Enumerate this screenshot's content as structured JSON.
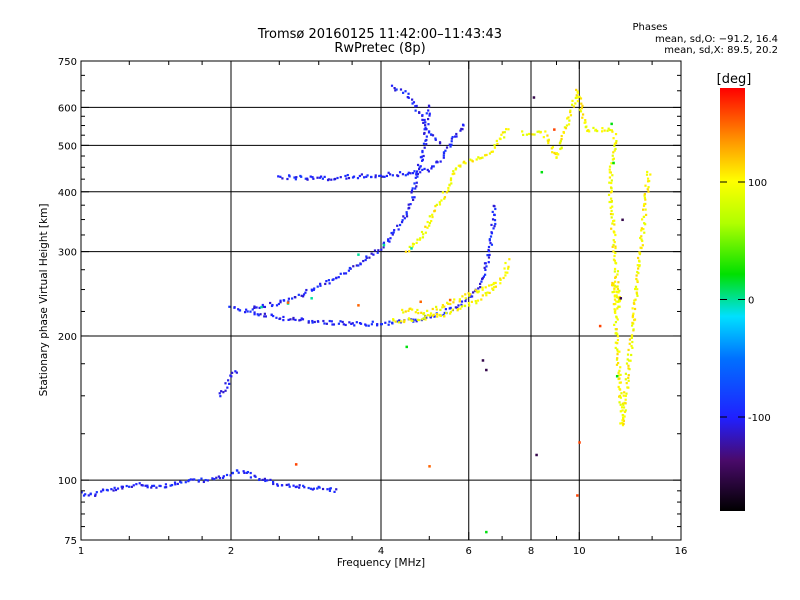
{
  "chart_data": {
    "type": "scatter",
    "title": "Tromsø 20160125 11:42:00–11:43:43",
    "subtitle": "RwPretec (8p)",
    "xlabel": "Frequency [MHz]",
    "ylabel": "Stationary phase Virtual Height [km]",
    "x_scale": "log",
    "y_scale": "log",
    "xlim": [
      1,
      16
    ],
    "ylim": [
      75,
      750
    ],
    "x_ticks": [
      1,
      2,
      4,
      6,
      8,
      10,
      16
    ],
    "y_ticks": [
      75,
      100,
      200,
      300,
      400,
      500,
      600,
      750
    ],
    "x_gridlines": [
      2,
      4,
      6,
      8,
      10
    ],
    "y_gridlines": [
      100,
      200,
      300,
      400,
      500,
      600
    ],
    "grid": true,
    "phase_stats": {
      "title": "Phases",
      "line_o": "mean, sd,O: −91.2, 16.4",
      "line_x": "mean, sd,X:  89.5, 20.2"
    },
    "colorbar": {
      "title": "[deg]",
      "min": -180,
      "max": 180,
      "ticks": [
        100,
        0,
        -100
      ],
      "tick_labels": [
        "100",
        "0",
        "-100"
      ]
    },
    "series_traces": [
      {
        "phase": -100,
        "points": [
          [
            1.0,
            94
          ],
          [
            1.05,
            93
          ],
          [
            1.1,
            95
          ],
          [
            1.2,
            96
          ],
          [
            1.3,
            98
          ],
          [
            1.45,
            97
          ],
          [
            1.6,
            99
          ],
          [
            1.75,
            100
          ],
          [
            1.9,
            101
          ],
          [
            2.0,
            103
          ],
          [
            2.1,
            105
          ],
          [
            2.2,
            102
          ],
          [
            2.35,
            100
          ],
          [
            2.5,
            98
          ],
          [
            2.7,
            97
          ],
          [
            3.0,
            96
          ],
          [
            3.3,
            95
          ]
        ]
      },
      {
        "phase": -100,
        "points": [
          [
            1.9,
            150
          ],
          [
            1.95,
            155
          ],
          [
            2.0,
            165
          ],
          [
            2.05,
            170
          ]
        ]
      },
      {
        "phase": -100,
        "points": [
          [
            2.0,
            229
          ],
          [
            2.3,
            222
          ],
          [
            2.7,
            216
          ],
          [
            3.2,
            213
          ],
          [
            3.7,
            212
          ],
          [
            4.2,
            213
          ],
          [
            4.7,
            216
          ],
          [
            5.2,
            221
          ],
          [
            5.7,
            230
          ],
          [
            6.0,
            240
          ],
          [
            6.3,
            255
          ],
          [
            6.5,
            275
          ],
          [
            6.6,
            300
          ],
          [
            6.7,
            330
          ],
          [
            6.75,
            360
          ],
          [
            6.8,
            380
          ]
        ]
      },
      {
        "phase": -100,
        "points": [
          [
            2.2,
            228
          ],
          [
            2.5,
            235
          ],
          [
            2.8,
            245
          ],
          [
            3.1,
            258
          ],
          [
            3.4,
            272
          ],
          [
            3.7,
            288
          ],
          [
            4.0,
            305
          ],
          [
            4.2,
            325
          ],
          [
            4.4,
            345
          ],
          [
            4.6,
            380
          ],
          [
            4.7,
            420
          ],
          [
            4.8,
            460
          ],
          [
            4.9,
            510
          ],
          [
            4.95,
            560
          ],
          [
            5.0,
            610
          ]
        ]
      },
      {
        "phase": -100,
        "points": [
          [
            2.5,
            430
          ],
          [
            2.8,
            428
          ],
          [
            3.1,
            427
          ],
          [
            3.5,
            430
          ],
          [
            4.0,
            433
          ],
          [
            4.5,
            437
          ],
          [
            5.0,
            445
          ],
          [
            5.3,
            470
          ],
          [
            5.5,
            500
          ],
          [
            5.7,
            530
          ],
          [
            5.9,
            560
          ]
        ]
      },
      {
        "phase": -100,
        "points": [
          [
            4.2,
            660
          ],
          [
            4.5,
            640
          ],
          [
            4.7,
            600
          ],
          [
            4.9,
            560
          ],
          [
            5.1,
            520
          ],
          [
            5.3,
            500
          ]
        ]
      },
      {
        "phase": 100,
        "points": [
          [
            4.2,
            215
          ],
          [
            4.8,
            217
          ],
          [
            5.4,
            222
          ],
          [
            6.0,
            232
          ],
          [
            6.5,
            245
          ],
          [
            6.9,
            258
          ],
          [
            7.1,
            270
          ],
          [
            7.2,
            290
          ]
        ]
      },
      {
        "phase": 100,
        "points": [
          [
            4.5,
            300
          ],
          [
            4.8,
            320
          ],
          [
            5.1,
            360
          ],
          [
            5.4,
            400
          ],
          [
            5.6,
            440
          ],
          [
            5.9,
            460
          ],
          [
            6.3,
            470
          ],
          [
            6.7,
            490
          ],
          [
            7.0,
            520
          ],
          [
            7.2,
            550
          ]
        ]
      },
      {
        "phase": 100,
        "points": [
          [
            4.4,
            225
          ],
          [
            4.6,
            228
          ],
          [
            4.9,
            222
          ],
          [
            5.6,
            236
          ],
          [
            6.2,
            248
          ],
          [
            6.8,
            258
          ]
        ]
      },
      {
        "phase": 0,
        "points": [
          [
            2.3,
            230
          ],
          [
            2.6,
            234
          ],
          [
            2.9,
            240
          ],
          [
            3.6,
            296
          ],
          [
            4.05,
            310
          ],
          [
            4.6,
            305
          ]
        ]
      },
      {
        "phase": 150,
        "points": [
          [
            2.6,
            235
          ],
          [
            3.6,
            232
          ],
          [
            4.8,
            236
          ],
          [
            5.5,
            238
          ],
          [
            5.0,
            107
          ]
        ]
      },
      {
        "phase": 100,
        "points": [
          [
            7.7,
            530
          ],
          [
            8.5,
            530
          ],
          [
            9.0,
            470
          ],
          [
            9.9,
            650
          ],
          [
            10.3,
            540
          ],
          [
            11.6,
            540
          ],
          [
            11.8,
            520
          ],
          [
            11.5,
            420
          ],
          [
            12.0,
            230
          ],
          [
            11.7,
            260
          ],
          [
            12.2,
            130
          ],
          [
            13.8,
            445
          ]
        ]
      },
      {
        "phase": 20,
        "points": [
          [
            6.5,
            78
          ],
          [
            4.5,
            190
          ],
          [
            11.9,
            165
          ],
          [
            11.7,
            460
          ],
          [
            11.6,
            555
          ],
          [
            8.4,
            440
          ]
        ]
      },
      {
        "phase": -150,
        "points": [
          [
            8.1,
            630
          ],
          [
            6.4,
            178
          ],
          [
            6.5,
            170
          ],
          [
            12.2,
            350
          ],
          [
            12.1,
            240
          ],
          [
            8.2,
            113
          ]
        ]
      },
      {
        "phase": 160,
        "points": [
          [
            8.9,
            540
          ],
          [
            10.0,
            120
          ],
          [
            9.9,
            93
          ],
          [
            2.7,
            108
          ],
          [
            11.0,
            210
          ]
        ]
      }
    ]
  }
}
